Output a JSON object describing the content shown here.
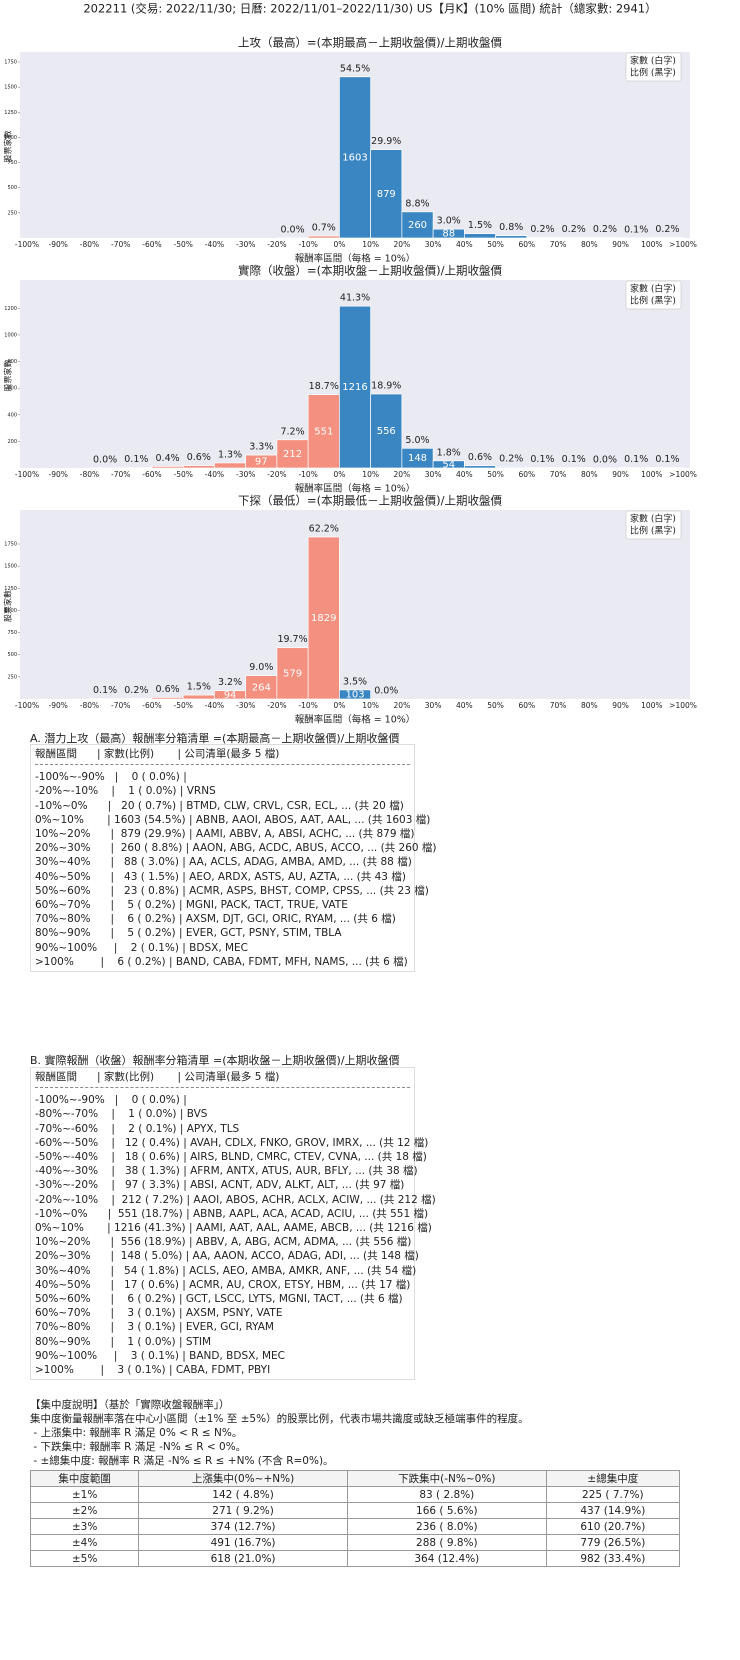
{
  "header": {
    "title": "202211 (交易: 2022/11/30; 日曆: 2022/11/01–2022/11/30) US【月K】(10% 區間) 統計（總家數: 2941）"
  },
  "chart_data": [
    {
      "type": "bar",
      "title": "上攻（最高）=(本期最高－上期收盤價)/上期收盤價",
      "xlabel": "報酬率區間（每格 = 10%）",
      "ylabel": "股票家數",
      "legend": [
        "家數 (白字)",
        "比例 (黑字)"
      ],
      "bin_edge_labels": [
        "-100%",
        "-90%",
        "-80%",
        "-70%",
        "-60%",
        "-50%",
        "-40%",
        "-30%",
        "-20%",
        "-10%",
        "0%",
        "10%",
        "20%",
        "30%",
        "40%",
        "50%",
        "60%",
        "70%",
        "80%",
        "90%",
        "100%",
        ">100%"
      ],
      "values": [
        null,
        null,
        null,
        null,
        null,
        null,
        null,
        null,
        1,
        20,
        1603,
        879,
        260,
        88,
        43,
        23,
        5,
        6,
        5,
        2,
        6
      ],
      "percent_labels": [
        null,
        null,
        null,
        null,
        null,
        null,
        null,
        null,
        "0.0%",
        "0.7%",
        "54.5%",
        "29.9%",
        "8.8%",
        "3.0%",
        "1.5%",
        "0.8%",
        "0.2%",
        "0.2%",
        "0.2%",
        "0.1%",
        "0.2%"
      ],
      "colors": [
        null,
        null,
        null,
        null,
        null,
        null,
        null,
        null,
        "#f4907f",
        "#f4907f",
        "#3a86c2",
        "#3a86c2",
        "#3a86c2",
        "#3a86c2",
        "#3a86c2",
        "#3a86c2",
        "#3a86c2",
        "#3a86c2",
        "#3a86c2",
        "#3a86c2",
        "#3a86c2"
      ],
      "ylim": [
        0,
        1820
      ],
      "yticks": [
        250,
        500,
        750,
        1000,
        1250,
        1500,
        1750
      ]
    },
    {
      "type": "bar",
      "title": "實際（收盤）=(本期收盤－上期收盤價)/上期收盤價",
      "xlabel": "報酬率區間（每格 = 10%）",
      "ylabel": "股票家數",
      "legend": [
        "家數 (白字)",
        "比例 (黑字)"
      ],
      "bin_edge_labels": [
        "-100%",
        "-90%",
        "-80%",
        "-70%",
        "-60%",
        "-50%",
        "-40%",
        "-30%",
        "-20%",
        "-10%",
        "0%",
        "10%",
        "20%",
        "30%",
        "40%",
        "50%",
        "60%",
        "70%",
        "80%",
        "90%",
        "100%",
        ">100%"
      ],
      "values": [
        null,
        null,
        1,
        2,
        12,
        18,
        38,
        97,
        212,
        551,
        1216,
        556,
        148,
        54,
        17,
        6,
        3,
        3,
        1,
        3,
        3
      ],
      "percent_labels": [
        null,
        null,
        "0.0%",
        "0.1%",
        "0.4%",
        "0.6%",
        "1.3%",
        "3.3%",
        "7.2%",
        "18.7%",
        "41.3%",
        "18.9%",
        "5.0%",
        "1.8%",
        "0.6%",
        "0.2%",
        "0.1%",
        "0.1%",
        "0.0%",
        "0.1%",
        "0.1%"
      ],
      "colors": [
        null,
        null,
        "#f4907f",
        "#f4907f",
        "#f4907f",
        "#f4907f",
        "#f4907f",
        "#f4907f",
        "#f4907f",
        "#f4907f",
        "#3a86c2",
        "#3a86c2",
        "#3a86c2",
        "#3a86c2",
        "#3a86c2",
        "#3a86c2",
        "#3a86c2",
        "#3a86c2",
        "#3a86c2",
        "#3a86c2",
        "#3a86c2"
      ],
      "ylim": [
        0,
        1390
      ],
      "yticks": [
        200,
        400,
        600,
        800,
        1000,
        1200
      ]
    },
    {
      "type": "bar",
      "title": "下探（最低）=(本期最低－上期收盤價)/上期收盤價",
      "xlabel": "報酬率區間（每格 = 10%）",
      "ylabel": "股票家數",
      "legend": [
        "家數 (白字)",
        "比例 (黑字)"
      ],
      "bin_edge_labels": [
        "-100%",
        "-90%",
        "-80%",
        "-70%",
        "-60%",
        "-50%",
        "-40%",
        "-30%",
        "-20%",
        "-10%",
        "0%",
        "10%",
        "20%",
        "30%",
        "40%",
        "50%",
        "60%",
        "70%",
        "80%",
        "90%",
        "100%",
        ">100%"
      ],
      "values": [
        null,
        null,
        3,
        6,
        18,
        44,
        94,
        264,
        579,
        1829,
        103,
        1,
        null,
        null,
        null,
        null,
        null,
        null,
        null,
        null,
        null
      ],
      "percent_labels": [
        null,
        null,
        "0.1%",
        "0.2%",
        "0.6%",
        "1.5%",
        "3.2%",
        "9.0%",
        "19.7%",
        "62.2%",
        "3.5%",
        "0.0%",
        null,
        null,
        null,
        null,
        null,
        null,
        null,
        null,
        null
      ],
      "colors": [
        null,
        null,
        "#f4907f",
        "#f4907f",
        "#f4907f",
        "#f4907f",
        "#f4907f",
        "#f4907f",
        "#f4907f",
        "#f4907f",
        "#3a86c2",
        "#3a86c2",
        null,
        null,
        null,
        null,
        null,
        null,
        null,
        null,
        null
      ],
      "ylim": [
        0,
        2100
      ],
      "yticks": [
        250,
        500,
        750,
        1000,
        1250,
        1500,
        1750
      ]
    }
  ],
  "lists": [
    {
      "title": "A. 潛力上攻（最高）報酬率分箱清單 =(本期最高－上期收盤價)/上期收盤價",
      "header": "報酬區間      | 家數(比例)       | 公司清單(最多 5 檔)",
      "rows": [
        "-100%~-90%   |    0 ( 0.0%) |",
        "-20%~-10%    |    1 ( 0.0%) | VRNS",
        "-10%~0%      |   20 ( 0.7%) | BTMD, CLW, CRVL, CSR, ECL, ... (共 20 檔)",
        "0%~10%       | 1603 (54.5%) | ABNB, AAOI, ABOS, AAT, AAL, ... (共 1603 檔)",
        "10%~20%      |  879 (29.9%) | AAMI, ABBV, A, ABSI, ACHC, ... (共 879 檔)",
        "20%~30%      |  260 ( 8.8%) | AAON, ABG, ACDC, ABUS, ACCO, ... (共 260 檔)",
        "30%~40%      |   88 ( 3.0%) | AA, ACLS, ADAG, AMBA, AMD, ... (共 88 檔)",
        "40%~50%      |   43 ( 1.5%) | AEO, ARDX, ASTS, AU, AZTA, ... (共 43 檔)",
        "50%~60%      |   23 ( 0.8%) | ACMR, ASPS, BHST, COMP, CPSS, ... (共 23 檔)",
        "60%~70%      |    5 ( 0.2%) | MGNI, PACK, TACT, TRUE, VATE",
        "70%~80%      |    6 ( 0.2%) | AXSM, DJT, GCI, ORIC, RYAM, ... (共 6 檔)",
        "80%~90%      |    5 ( 0.2%) | EVER, GCT, PSNY, STIM, TBLA",
        "90%~100%     |    2 ( 0.1%) | BDSX, MEC",
        ">100%        |    6 ( 0.2%) | BAND, CABA, FDMT, MFH, NAMS, ... (共 6 檔)"
      ]
    },
    {
      "title": "B. 實際報酬（收盤）報酬率分箱清單 =(本期收盤－上期收盤價)/上期收盤價",
      "header": "報酬區間      | 家數(比例)       | 公司清單(最多 5 檔)",
      "rows": [
        "-100%~-90%   |    0 ( 0.0%) |",
        "-80%~-70%    |    1 ( 0.0%) | BVS",
        "-70%~-60%    |    2 ( 0.1%) | APYX, TLS",
        "-60%~-50%    |   12 ( 0.4%) | AVAH, CDLX, FNKO, GROV, IMRX, ... (共 12 檔)",
        "-50%~-40%    |   18 ( 0.6%) | AIRS, BLND, CMRC, CTEV, CVNA, ... (共 18 檔)",
        "-40%~-30%    |   38 ( 1.3%) | AFRM, ANTX, ATUS, AUR, BFLY, ... (共 38 檔)",
        "-30%~-20%    |   97 ( 3.3%) | ABSI, ACNT, ADV, ALKT, ALT, ... (共 97 檔)",
        "-20%~-10%    |  212 ( 7.2%) | AAOI, ABOS, ACHR, ACLX, ACIW, ... (共 212 檔)",
        "-10%~0%      |  551 (18.7%) | ABNB, AAPL, ACA, ACAD, ACIU, ... (共 551 檔)",
        "0%~10%       | 1216 (41.3%) | AAMI, AAT, AAL, AAME, ABCB, ... (共 1216 檔)",
        "10%~20%      |  556 (18.9%) | ABBV, A, ABG, ACM, ADMA, ... (共 556 檔)",
        "20%~30%      |  148 ( 5.0%) | AA, AAON, ACCO, ADAG, ADI, ... (共 148 檔)",
        "30%~40%      |   54 ( 1.8%) | ACLS, AEO, AMBA, AMKR, ANF, ... (共 54 檔)",
        "40%~50%      |   17 ( 0.6%) | ACMR, AU, CROX, ETSY, HBM, ... (共 17 檔)",
        "50%~60%      |    6 ( 0.2%) | GCT, LSCC, LYTS, MGNI, TACT, ... (共 6 檔)",
        "60%~70%      |    3 ( 0.1%) | AXSM, PSNY, VATE",
        "70%~80%      |    3 ( 0.1%) | EVER, GCI, RYAM",
        "80%~90%      |    1 ( 0.0%) | STIM",
        "90%~100%     |    3 ( 0.1%) | BAND, BDSX, MEC",
        ">100%        |    3 ( 0.1%) | CABA, FDMT, PBYI"
      ]
    }
  ],
  "concentration": {
    "title": "【集中度說明】（基於「實際收盤報酬率」）",
    "lines": [
      "集中度衡量報酬率落在中心小區間（±1% 至 ±5%）的股票比例，代表市場共識度或缺乏極端事件的程度。",
      " - 上漲集中: 報酬率 R 滿足 0% < R ≤ N%。",
      " - 下跌集中: 報酬率 R 滿足 -N% ≤ R < 0%。",
      " - ±總集中度: 報酬率 R 滿足 -N% ≤ R ≤ +N% (不含 R=0%)。"
    ],
    "table": {
      "headers": [
        "集中度範圍",
        "上漲集中(0%~+N%)",
        "下跌集中(-N%~0%)",
        "±總集中度"
      ],
      "rows": [
        [
          "±1%",
          "142 ( 4.8%)",
          "83 ( 2.8%)",
          "225 ( 7.7%)"
        ],
        [
          "±2%",
          "271 ( 9.2%)",
          "166 ( 5.6%)",
          "437 (14.9%)"
        ],
        [
          "±3%",
          "374 (12.7%)",
          "236 ( 8.0%)",
          "610 (20.7%)"
        ],
        [
          "±4%",
          "491 (16.7%)",
          "288 ( 9.8%)",
          "779 (26.5%)"
        ],
        [
          "±5%",
          "618 (21.0%)",
          "364 (12.4%)",
          "982 (33.4%)"
        ]
      ]
    }
  }
}
